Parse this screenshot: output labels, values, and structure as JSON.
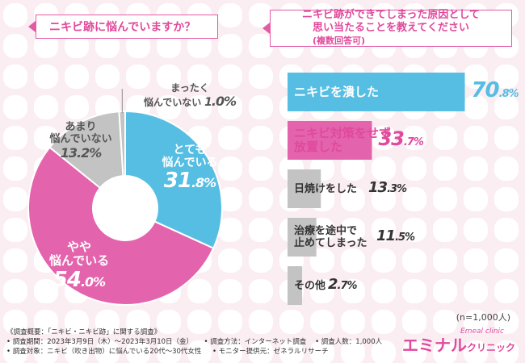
{
  "colors": {
    "pink": "#e463ad",
    "blue": "#56bde3",
    "gray": "#c3c3c3",
    "accent": "#e0499c"
  },
  "left_question": "ニキビ跡に悩んでいますか？",
  "right_question": {
    "line1": "ニキビ跡ができてしまった原因として",
    "line2": "思い当たることを教えてください",
    "line2_suffix": "(複数回答可)"
  },
  "sample_size": "(n=1,000人)",
  "footnote": {
    "title": "《調査概要：「ニキビ・ニキビ跡」に関する調査》",
    "period": "• 調査期間：2023年3月9日（木）～2023年3月10日（金）",
    "method": "• 調査方法：インターネット調査",
    "count": "• 調査人数：1,000人",
    "target": "• 調査対象：ニキビ（吹き出物）に悩んでいる20代～30代女性",
    "provider": "• モニター提供元：ゼネラルリサーチ"
  },
  "brand": {
    "name": "エミナル",
    "sub": "クリニック",
    "tag": "Emeal clinic"
  },
  "chart_data": [
    {
      "type": "pie",
      "title": "ニキビ跡に悩んでいますか？",
      "slices": [
        {
          "label_lines": [
            "とても",
            "悩んでいる"
          ],
          "value": 31.8,
          "color": "#56bde3"
        },
        {
          "label_lines": [
            "やや",
            "悩んでいる"
          ],
          "value": 54.0,
          "color": "#e463ad"
        },
        {
          "label_lines": [
            "あまり",
            "悩んでいない"
          ],
          "value": 13.2,
          "color": "#c3c3c3"
        },
        {
          "label_lines": [
            "まったく",
            "悩んでいない"
          ],
          "value": 1.0,
          "color": "#c3c3c3"
        }
      ]
    },
    {
      "type": "bar",
      "orientation": "horizontal",
      "title": "ニキビ跡ができてしまった原因として思い当たることを教えてください(複数回答可)",
      "xlim": [
        0,
        100
      ],
      "bars": [
        {
          "label_lines": [
            "ニキビを潰した"
          ],
          "value": 70.8,
          "color": "#56bde3"
        },
        {
          "label_lines": [
            "ニキビ対策をせず",
            "放置した"
          ],
          "value": 33.7,
          "color": "#e463ad"
        },
        {
          "label_lines": [
            "日焼けをした"
          ],
          "value": 13.3,
          "color": "#c3c3c3"
        },
        {
          "label_lines": [
            "治療を途中で",
            "止めてしまった"
          ],
          "value": 11.5,
          "color": "#c3c3c3"
        },
        {
          "label_lines": [
            "その他"
          ],
          "value": 2.7,
          "color": "#c3c3c3"
        }
      ]
    }
  ]
}
